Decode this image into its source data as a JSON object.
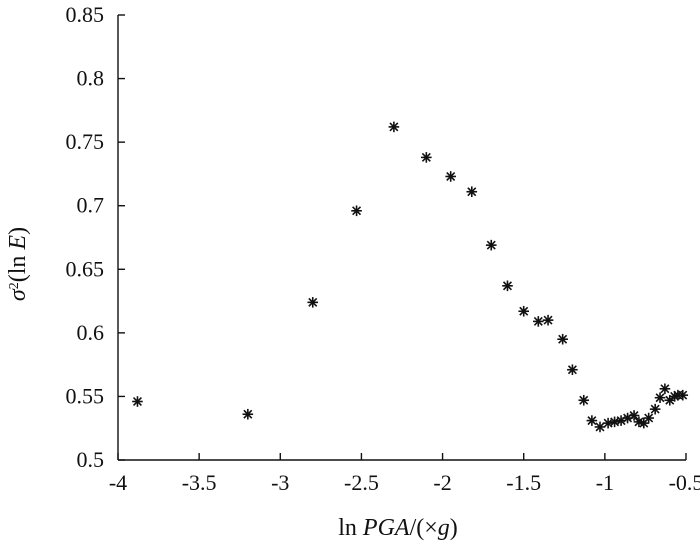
{
  "chart_data": {
    "type": "scatter",
    "title": "",
    "xlabel": {
      "prefix": "ln ",
      "italic": "PGA",
      "suffix": "/(×",
      "italic2": "g",
      "close": ")"
    },
    "ylabel": {
      "sigma": "σ",
      "sup": "2",
      "prefix": "(ln ",
      "italic": "E",
      "close": ")"
    },
    "xlim": [
      -4,
      -0.5
    ],
    "ylim": [
      0.5,
      0.85
    ],
    "xticks": [
      -4,
      -3.5,
      -3,
      -2.5,
      -2,
      -1.5,
      -1,
      -0.5
    ],
    "xtick_labels": [
      "-4",
      "-3.5",
      "-3",
      "-2.5",
      "-2",
      "-1.5",
      "-1",
      "-0.5"
    ],
    "yticks": [
      0.5,
      0.55,
      0.6,
      0.65,
      0.7,
      0.75,
      0.8,
      0.85
    ],
    "ytick_labels": [
      "0.5",
      "0.55",
      "0.6",
      "0.65",
      "0.7",
      "0.75",
      "0.8",
      "0.85"
    ],
    "grid": false,
    "marker": "asterisk",
    "color": "#111111",
    "x": [
      -3.88,
      -3.2,
      -2.8,
      -2.53,
      -2.3,
      -2.1,
      -1.95,
      -1.82,
      -1.7,
      -1.6,
      -1.5,
      -1.41,
      -1.35,
      -1.26,
      -1.2,
      -1.13,
      -1.08,
      -1.03,
      -0.98,
      -0.94,
      -0.9,
      -0.86,
      -0.82,
      -0.79,
      -0.76,
      -0.73,
      -0.69,
      -0.66,
      -0.63,
      -0.6,
      -0.57,
      -0.55,
      -0.52
    ],
    "y": [
      0.546,
      0.536,
      0.624,
      0.696,
      0.762,
      0.738,
      0.723,
      0.711,
      0.669,
      0.637,
      0.617,
      0.609,
      0.61,
      0.595,
      0.571,
      0.547,
      0.531,
      0.526,
      0.529,
      0.53,
      0.531,
      0.533,
      0.535,
      0.53,
      0.529,
      0.533,
      0.54,
      0.549,
      0.556,
      0.547,
      0.55,
      0.551,
      0.551
    ]
  }
}
